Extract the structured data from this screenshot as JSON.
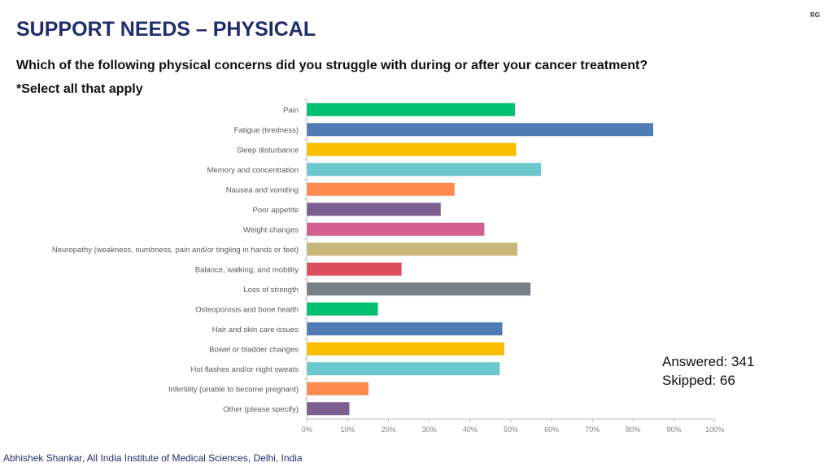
{
  "slide": {
    "title": "SUPPORT NEEDS – PHYSICAL",
    "corner_mark": "RG",
    "question": "Which of the following physical concerns did you struggle with during or after your cancer treatment?",
    "instruction": "*Select all that apply",
    "answered": "Answered: 341",
    "skipped": "Skipped: 66",
    "footer": "Abhishek Shankar, All India Institute of Medical Sciences, Delhi, India"
  },
  "chart_data": {
    "type": "bar",
    "orientation": "horizontal",
    "categories": [
      "Pain",
      "Fatigue (tiredness)",
      "Sleep disturbance",
      "Memory and concentration",
      "Nausea and vomiting",
      "Poor appetite",
      "Weight changes",
      "Neuropathy (weakness, numbness, pain and/or tingling in hands or feet)",
      "Balance, walking, and mobility",
      "Loss of strength",
      "Osteoporosis and bone health",
      "Hair and skin care issues",
      "Bowel or bladder changes",
      "Hot flashes and/or night sweats",
      "Infertility (unable to become pregnant)",
      "Other (please specify)"
    ],
    "values": [
      51.0,
      84.9,
      51.3,
      57.4,
      36.2,
      32.8,
      43.5,
      51.6,
      23.2,
      54.8,
      17.4,
      47.9,
      48.4,
      47.3,
      15.1,
      10.4
    ],
    "colors": [
      "#00bf6f",
      "#507cb6",
      "#f9be00",
      "#6bc8cd",
      "#ff8b4f",
      "#7d5e90",
      "#d25f90",
      "#c7b879",
      "#dd4e5b",
      "#768086",
      "#00bf6f",
      "#507cb6",
      "#f9be00",
      "#6bc8cd",
      "#ff8b4f",
      "#7d5e90"
    ],
    "xlim": [
      0,
      100
    ],
    "xticks": [
      "0%",
      "10%",
      "20%",
      "30%",
      "40%",
      "50%",
      "60%",
      "70%",
      "80%",
      "90%",
      "100%"
    ],
    "grid": false,
    "legend": "none"
  }
}
